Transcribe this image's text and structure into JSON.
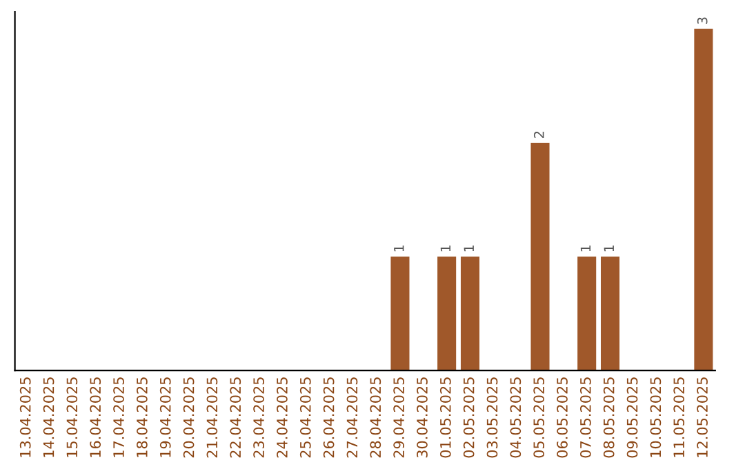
{
  "chart_data": {
    "type": "bar",
    "categories": [
      "13.04.2025",
      "14.04.2025",
      "15.04.2025",
      "16.04.2025",
      "17.04.2025",
      "18.04.2025",
      "19.04.2025",
      "20.04.2025",
      "21.04.2025",
      "22.04.2025",
      "23.04.2025",
      "24.04.2025",
      "25.04.2025",
      "26.04.2025",
      "27.04.2025",
      "28.04.2025",
      "29.04.2025",
      "30.04.2025",
      "01.05.2025",
      "02.05.2025",
      "03.05.2025",
      "04.05.2025",
      "05.05.2025",
      "06.05.2025",
      "07.05.2025",
      "08.05.2025",
      "09.05.2025",
      "10.05.2025",
      "11.05.2025",
      "12.05.2025"
    ],
    "values": [
      null,
      null,
      null,
      null,
      null,
      null,
      null,
      null,
      null,
      null,
      null,
      null,
      null,
      null,
      null,
      null,
      1,
      null,
      1,
      1,
      null,
      null,
      2,
      null,
      1,
      1,
      null,
      null,
      null,
      3
    ],
    "value_labels": [
      null,
      null,
      null,
      null,
      null,
      null,
      null,
      null,
      null,
      null,
      null,
      null,
      null,
      null,
      null,
      null,
      "1",
      null,
      "1",
      "1",
      null,
      null,
      "2",
      null,
      "1",
      "1",
      null,
      null,
      null,
      "3"
    ],
    "color": "#a0582a",
    "ylim": [
      0,
      3.15
    ],
    "tick_labels": "x",
    "grid": false,
    "legend": false
  }
}
